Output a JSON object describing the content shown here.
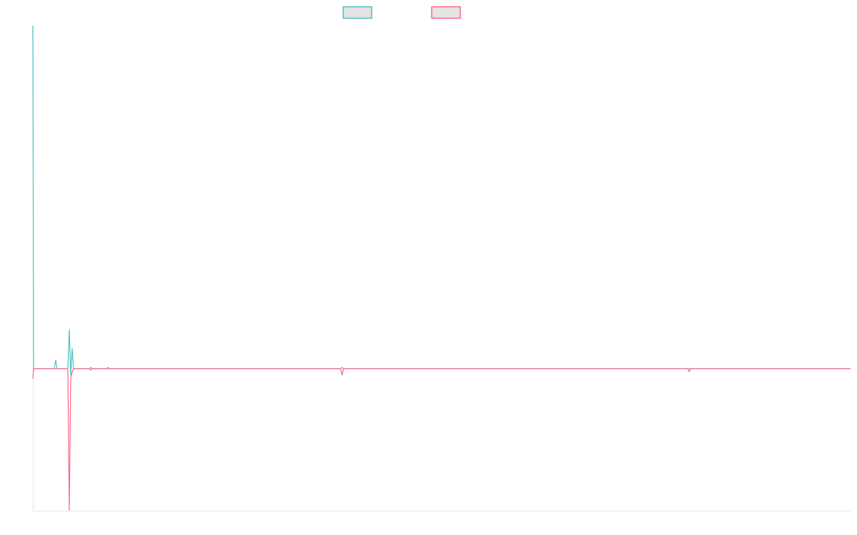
{
  "chart_data": {
    "type": "line",
    "title": "",
    "xlabel": "",
    "ylabel": "",
    "xlim": [
      0,
      1145
    ],
    "ylim": [
      -41.4,
      100
    ],
    "grid": false,
    "legend": "top",
    "series": [
      {
        "color": "#4bc0c0",
        "points": [
          [
            0,
            100
          ],
          [
            1,
            0
          ],
          [
            30,
            0
          ],
          [
            32,
            2.5
          ],
          [
            34,
            0
          ],
          [
            49,
            0
          ],
          [
            51,
            11.5
          ],
          [
            53,
            -2
          ],
          [
            55,
            6
          ],
          [
            57,
            0
          ],
          [
            79,
            0
          ],
          [
            81,
            0.4
          ],
          [
            83,
            0
          ],
          [
            103,
            0
          ],
          [
            105,
            0.4
          ],
          [
            107,
            0
          ],
          [
            431,
            0
          ],
          [
            433,
            0.4
          ],
          [
            435,
            0
          ],
          [
            1145,
            0
          ]
        ]
      },
      {
        "color": "#ff6384",
        "points": [
          [
            0,
            -2.9
          ],
          [
            1,
            0
          ],
          [
            49,
            0
          ],
          [
            51,
            -41.4
          ],
          [
            53,
            -3
          ],
          [
            55,
            -1
          ],
          [
            57,
            0
          ],
          [
            79,
            0
          ],
          [
            81,
            -0.4
          ],
          [
            83,
            0
          ],
          [
            431,
            0
          ],
          [
            433,
            -1.9
          ],
          [
            435,
            0
          ],
          [
            917,
            0
          ],
          [
            919,
            -0.8
          ],
          [
            921,
            0
          ],
          [
            1145,
            0
          ]
        ]
      }
    ]
  }
}
